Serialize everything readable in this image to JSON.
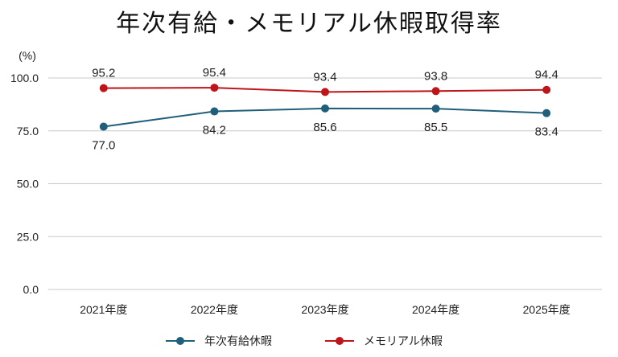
{
  "chart_data": {
    "type": "line",
    "title": "年次有給・メモリアル休暇取得率",
    "unit": "(%)",
    "categories": [
      "2021年度",
      "2022年度",
      "2023年度",
      "2024年度",
      "2025年度"
    ],
    "ylim": [
      0,
      100
    ],
    "yticks": [
      "0.0",
      "25.0",
      "50.0",
      "75.0",
      "100.0"
    ],
    "grid": true,
    "legend_position": "bottom",
    "series": [
      {
        "name": "年次有給休暇",
        "color": "#1f5f7a",
        "values": [
          77.0,
          84.2,
          85.6,
          85.5,
          83.4
        ],
        "labels": [
          "77.0",
          "84.2",
          "85.6",
          "85.5",
          "83.4"
        ]
      },
      {
        "name": "メモリアル休暇",
        "color": "#c0141b",
        "values": [
          95.2,
          95.4,
          93.4,
          93.8,
          94.4
        ],
        "labels": [
          "95.2",
          "95.4",
          "93.4",
          "93.8",
          "94.4"
        ]
      }
    ]
  }
}
